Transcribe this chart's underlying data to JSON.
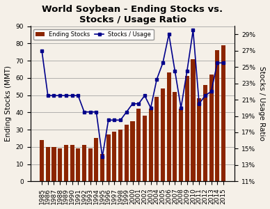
{
  "title": "World Soybean - Ending Stocks vs.\nStocks / Usage Ratio",
  "years": [
    1985,
    1986,
    1987,
    1988,
    1989,
    1990,
    1991,
    1992,
    1993,
    1994,
    1995,
    1996,
    1997,
    1998,
    1999,
    2000,
    2001,
    2002,
    2003,
    2004,
    2005,
    2006,
    2007,
    2008,
    2009,
    2010,
    2011,
    2012,
    2013,
    2014,
    2015
  ],
  "ending_stocks": [
    24,
    20,
    20,
    19,
    21,
    21,
    19,
    21,
    19,
    25,
    16,
    27,
    29,
    30,
    33,
    35,
    42,
    38,
    42,
    49,
    54,
    63,
    52,
    42,
    61,
    71,
    48,
    56,
    62,
    76,
    79
  ],
  "stocks_usage": [
    0.27,
    0.215,
    0.215,
    0.215,
    0.215,
    0.215,
    0.215,
    0.195,
    0.195,
    0.195,
    0.14,
    0.185,
    0.185,
    0.185,
    0.195,
    0.205,
    0.205,
    0.215,
    0.2,
    0.235,
    0.255,
    0.29,
    0.245,
    0.2,
    0.245,
    0.295,
    0.205,
    0.215,
    0.22,
    0.255,
    0.255
  ],
  "bar_color": "#8B2500",
  "line_color": "#00008B",
  "ylabel_left": "Ending Stocks (MMT)",
  "ylabel_right": "Stocks / Usage Ratio",
  "ylim_left": [
    0,
    90
  ],
  "ylim_right": [
    0.11,
    0.3
  ],
  "yticks_left": [
    0,
    10,
    20,
    30,
    40,
    50,
    60,
    70,
    80,
    90
  ],
  "yticks_right": [
    0.11,
    0.13,
    0.15,
    0.17,
    0.19,
    0.21,
    0.23,
    0.25,
    0.27,
    0.29
  ],
  "ytick_right_labels": [
    "11%",
    "13%",
    "15%",
    "17%",
    "19%",
    "21%",
    "23%",
    "25%",
    "27%",
    "29%"
  ],
  "legend_labels": [
    "Ending Stocks",
    "Stocks / Usage"
  ],
  "background_color": "#f5f0e8",
  "title_fontsize": 9.5,
  "axis_fontsize": 7.5,
  "tick_fontsize": 6.5
}
